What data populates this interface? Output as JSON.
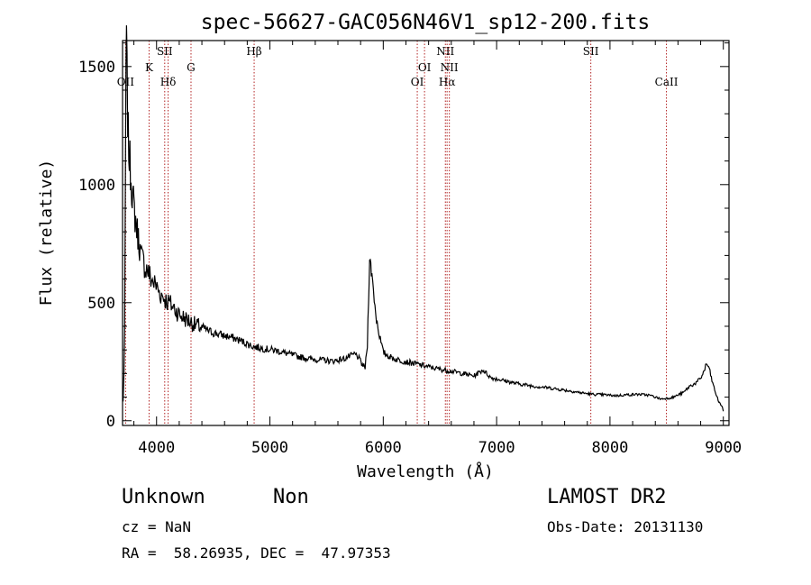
{
  "chart_data": {
    "type": "line",
    "title": "spec-56627-GAC056N46V1_sp12-200.fits",
    "xlabel": "Wavelength (Å)",
    "ylabel": "Flux (relative)",
    "xlim": [
      3700,
      9050
    ],
    "ylim": [
      -20,
      1610
    ],
    "xticks": [
      4000,
      5000,
      6000,
      7000,
      8000,
      9000
    ],
    "yticks": [
      0,
      500,
      1000,
      1500
    ],
    "grid": false,
    "line_color": "#000000",
    "marker_color": "#b22222",
    "series": [
      {
        "x": [
          3705,
          3712,
          3718,
          3722,
          3726,
          3730,
          3735,
          3740,
          3745,
          3750,
          3760,
          3770,
          3780,
          3790,
          3800,
          3815,
          3830,
          3845,
          3860,
          3880,
          3900,
          3920,
          3935,
          3950,
          3970,
          3990,
          4010,
          4030,
          4050,
          4070,
          4090,
          4110,
          4130,
          4150,
          4170,
          4200,
          4230,
          4260,
          4300,
          4340,
          4400,
          4460,
          4520,
          4600,
          4680,
          4760,
          4850,
          4950,
          5050,
          5150,
          5250,
          5350,
          5450,
          5550,
          5650,
          5700,
          5750,
          5780,
          5810,
          5840,
          5860,
          5870,
          5880,
          5890,
          5900,
          5920,
          5940,
          5960,
          5980,
          6000,
          6030,
          6060,
          6100,
          6150,
          6200,
          6300,
          6400,
          6500,
          6600,
          6700,
          6800,
          6880,
          6950,
          7050,
          7150,
          7250,
          7350,
          7450,
          7550,
          7650,
          7750,
          7850,
          7950,
          8050,
          8150,
          8250,
          8350,
          8400,
          8450,
          8550,
          8650,
          8700,
          8760,
          8800,
          8830,
          8850,
          8870,
          8900,
          8930,
          8960,
          8990,
          9000
        ],
        "y": [
          80,
          200,
          380,
          700,
          1100,
          1500,
          1570,
          1450,
          1300,
          1200,
          1120,
          1060,
          1000,
          950,
          900,
          850,
          800,
          760,
          700,
          680,
          650,
          640,
          620,
          600,
          590,
          575,
          560,
          540,
          530,
          520,
          505,
          500,
          490,
          480,
          470,
          450,
          440,
          430,
          420,
          405,
          395,
          380,
          370,
          360,
          350,
          335,
          315,
          305,
          298,
          285,
          272,
          262,
          258,
          252,
          262,
          272,
          282,
          270,
          240,
          225,
          320,
          520,
          690,
          650,
          620,
          520,
          430,
          380,
          330,
          290,
          280,
          270,
          262,
          256,
          250,
          240,
          228,
          218,
          210,
          200,
          190,
          215,
          182,
          172,
          160,
          152,
          145,
          140,
          133,
          126,
          118,
          112,
          110,
          106,
          110,
          112,
          108,
          100,
          92,
          98,
          120,
          145,
          160,
          180,
          210,
          240,
          230,
          170,
          120,
          80,
          60,
          40
        ]
      }
    ],
    "lines": [
      {
        "label": "OII",
        "x": 3727,
        "row": 2
      },
      {
        "label": "K",
        "x": 3934,
        "row": 1
      },
      {
        "label": "SII",
        "x": 4072,
        "row": 0
      },
      {
        "label": "Hδ",
        "x": 4102,
        "row": 2
      },
      {
        "label": "G",
        "x": 4304,
        "row": 1
      },
      {
        "label": "Hβ",
        "x": 4861,
        "row": 0
      },
      {
        "label": "OI",
        "x": 6300,
        "row": 2
      },
      {
        "label": "OI",
        "x": 6364,
        "row": 1
      },
      {
        "label": "NII",
        "x": 6548,
        "row": 0
      },
      {
        "label": "Hα",
        "x": 6563,
        "row": 2
      },
      {
        "label": "NII",
        "x": 6583,
        "row": 1
      },
      {
        "label": "SII",
        "x": 7831,
        "row": 0
      },
      {
        "label": "CaII",
        "x": 8498,
        "row": 2
      }
    ]
  },
  "info": {
    "object_class": "Unknown",
    "object_subclass": "Non",
    "survey": "LAMOST DR2",
    "redshift": "cz = NaN",
    "obs_date": "Obs-Date: 20131130",
    "coords": "RA =  58.26935, DEC =  47.97353"
  }
}
